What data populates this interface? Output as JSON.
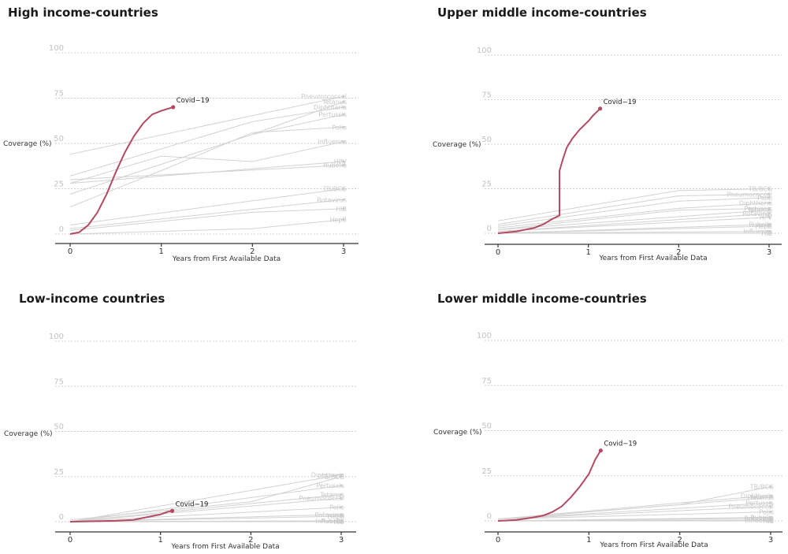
{
  "chart_data": [
    {
      "type": "line",
      "title": "High income-countries",
      "xlabel": "Years from First Available Data",
      "ylabel": "Coverage (%)",
      "xlim": [
        -0.15,
        3.15
      ],
      "ylim": [
        -5,
        102
      ],
      "x_ticks": [
        0,
        1,
        2,
        3
      ],
      "y_ticks": [
        0,
        25,
        50,
        75,
        100
      ],
      "series": [
        {
          "name": "Covid−19",
          "highlight": true,
          "x": [
            0,
            0.1,
            0.2,
            0.3,
            0.4,
            0.5,
            0.6,
            0.7,
            0.8,
            0.9,
            1.0,
            1.13
          ],
          "y": [
            0,
            1,
            5,
            12,
            22,
            34,
            45,
            54,
            61,
            66,
            68,
            70
          ]
        },
        {
          "name": "Pneumococcal",
          "x": [
            0,
            3
          ],
          "y": [
            44,
            76
          ]
        },
        {
          "name": "Diphtheria",
          "x": [
            0,
            2,
            3
          ],
          "y": [
            32,
            62,
            70
          ]
        },
        {
          "name": "Tetanus",
          "x": [
            2,
            3
          ],
          "y": [
            55,
            73
          ]
        },
        {
          "name": "Pertussis",
          "x": [
            0,
            2,
            3
          ],
          "y": [
            22,
            55,
            66
          ]
        },
        {
          "name": "Polio",
          "x": [
            0,
            1,
            2,
            3
          ],
          "y": [
            15,
            35,
            56,
            59
          ]
        },
        {
          "name": "Influenza",
          "x": [
            0,
            1,
            2,
            3
          ],
          "y": [
            28,
            43,
            40,
            51
          ]
        },
        {
          "name": "HPV",
          "x": [
            0,
            3
          ],
          "y": [
            28,
            40
          ]
        },
        {
          "name": "Rubella",
          "x": [
            0,
            3
          ],
          "y": [
            30,
            38
          ]
        },
        {
          "name": "TB/BCG",
          "x": [
            0,
            3
          ],
          "y": [
            5,
            25
          ]
        },
        {
          "name": "Rotavirus",
          "x": [
            0,
            3
          ],
          "y": [
            3,
            19
          ]
        },
        {
          "name": "HiB",
          "x": [
            0,
            2,
            3
          ],
          "y": [
            2,
            12,
            14
          ]
        },
        {
          "name": "HepB",
          "x": [
            0,
            2,
            3
          ],
          "y": [
            0,
            3,
            8
          ]
        }
      ]
    },
    {
      "type": "line",
      "title": "Upper middle income-countries",
      "xlabel": "Years from First Available Data",
      "ylabel": "Coverage (%)",
      "xlim": [
        -0.15,
        3.15
      ],
      "ylim": [
        -5,
        102
      ],
      "x_ticks": [
        0,
        1,
        2,
        3
      ],
      "y_ticks": [
        0,
        25,
        50,
        75,
        100
      ],
      "series": [
        {
          "name": "Covid−19",
          "highlight": true,
          "x": [
            0,
            0.2,
            0.4,
            0.5,
            0.6,
            0.68,
            0.68,
            0.72,
            0.76,
            0.82,
            0.9,
            1.0,
            1.05,
            1.13
          ],
          "y": [
            0,
            1,
            3,
            5,
            8,
            10,
            35,
            42,
            48,
            53,
            58,
            63,
            66,
            70
          ]
        },
        {
          "name": "TB/BCG",
          "x": [
            0,
            2,
            3
          ],
          "y": [
            7,
            24,
            25
          ]
        },
        {
          "name": "Pneumococcal",
          "x": [
            0,
            2,
            3
          ],
          "y": [
            5,
            21,
            22
          ]
        },
        {
          "name": "Polio",
          "x": [
            0,
            2,
            3
          ],
          "y": [
            4,
            18,
            20
          ]
        },
        {
          "name": "Diphtheria",
          "x": [
            0,
            2,
            3
          ],
          "y": [
            3,
            14,
            17
          ]
        },
        {
          "name": "Pertussis",
          "x": [
            0,
            2,
            3
          ],
          "y": [
            2,
            13,
            14
          ]
        },
        {
          "name": "Tetanus",
          "x": [
            0,
            3
          ],
          "y": [
            2,
            13
          ]
        },
        {
          "name": "Rotavirus",
          "x": [
            0,
            3
          ],
          "y": [
            1,
            11
          ]
        },
        {
          "name": "HPV",
          "x": [
            0,
            3
          ],
          "y": [
            1,
            9
          ]
        },
        {
          "name": "Rubella",
          "x": [
            0,
            3
          ],
          "y": [
            0,
            5
          ]
        },
        {
          "name": "HepB",
          "x": [
            0,
            3
          ],
          "y": [
            0,
            4
          ]
        },
        {
          "name": "Influenza",
          "x": [
            0,
            3
          ],
          "y": [
            0,
            1
          ]
        },
        {
          "name": "HiB",
          "x": [
            0,
            3
          ],
          "y": [
            0,
            0
          ]
        }
      ]
    },
    {
      "type": "line",
      "title": "Low-income countries",
      "xlabel": "Years from First Available Data",
      "ylabel": "Coverage (%)",
      "xlim": [
        -0.15,
        3.15
      ],
      "ylim": [
        -5,
        102
      ],
      "x_ticks": [
        0,
        1,
        2,
        3
      ],
      "y_ticks": [
        0,
        25,
        50,
        75,
        100
      ],
      "series": [
        {
          "name": "Covid−19",
          "highlight": true,
          "x": [
            0,
            0.5,
            0.7,
            0.8,
            0.9,
            1.0,
            1.08,
            1.13
          ],
          "y": [
            0,
            0.5,
            1,
            2,
            3,
            4,
            5.5,
            6
          ]
        },
        {
          "name": "TB/BCG",
          "x": [
            0,
            2,
            3
          ],
          "y": [
            1,
            11,
            25
          ]
        },
        {
          "name": "Diphtheria",
          "x": [
            0,
            3
          ],
          "y": [
            0,
            26
          ]
        },
        {
          "name": "Pertussis",
          "x": [
            0,
            3
          ],
          "y": [
            0,
            20
          ]
        },
        {
          "name": "Tetanus",
          "x": [
            0,
            3
          ],
          "y": [
            0,
            15
          ]
        },
        {
          "name": "Pneumococcal",
          "x": [
            0,
            3
          ],
          "y": [
            0,
            13
          ]
        },
        {
          "name": "Polio",
          "x": [
            0,
            3
          ],
          "y": [
            0,
            8
          ]
        },
        {
          "name": "Rotavirus",
          "x": [
            0,
            3
          ],
          "y": [
            0,
            4
          ]
        },
        {
          "name": "HepB",
          "x": [
            0,
            3
          ],
          "y": [
            0,
            3
          ]
        },
        {
          "name": "Influenza",
          "x": [
            0,
            3
          ],
          "y": [
            0,
            0.5
          ]
        },
        {
          "name": "Rubella",
          "x": [
            0,
            3
          ],
          "y": [
            0,
            0.5
          ]
        },
        {
          "name": "HiB",
          "x": [
            0,
            3
          ],
          "y": [
            0,
            0
          ]
        }
      ]
    },
    {
      "type": "line",
      "title": "Lower middle income-countries",
      "xlabel": "Years from First Available Data",
      "ylabel": "Coverage (%)",
      "xlim": [
        -0.15,
        3.15
      ],
      "ylim": [
        -5,
        102
      ],
      "x_ticks": [
        0,
        1,
        2,
        3
      ],
      "y_ticks": [
        0,
        25,
        50,
        75,
        100
      ],
      "series": [
        {
          "name": "Covid−19",
          "highlight": true,
          "x": [
            0,
            0.2,
            0.4,
            0.5,
            0.6,
            0.7,
            0.8,
            0.9,
            1.0,
            1.07,
            1.13
          ],
          "y": [
            0,
            0.5,
            2,
            3,
            5,
            8,
            13,
            19,
            26,
            34,
            39
          ]
        },
        {
          "name": "TB/BCG",
          "x": [
            0,
            2,
            3
          ],
          "y": [
            1,
            9,
            19
          ]
        },
        {
          "name": "Diphtheria",
          "x": [
            0,
            2,
            3
          ],
          "y": [
            1,
            10,
            14
          ]
        },
        {
          "name": "Tetanus",
          "x": [
            0,
            3
          ],
          "y": [
            1,
            13
          ]
        },
        {
          "name": "Pertussis",
          "x": [
            0,
            3
          ],
          "y": [
            1,
            10
          ]
        },
        {
          "name": "Pneumococcal",
          "x": [
            0,
            3
          ],
          "y": [
            1,
            8
          ]
        },
        {
          "name": "Polio",
          "x": [
            0,
            3
          ],
          "y": [
            1,
            5
          ]
        },
        {
          "name": "Rubella",
          "x": [
            0,
            3
          ],
          "y": [
            0,
            2
          ]
        },
        {
          "name": "Rotavirus",
          "x": [
            0,
            3
          ],
          "y": [
            0,
            1.5
          ]
        },
        {
          "name": "Influenza",
          "x": [
            0,
            3
          ],
          "y": [
            0,
            0.5
          ]
        },
        {
          "name": "HiB",
          "x": [
            0,
            3
          ],
          "y": [
            0,
            0
          ]
        }
      ]
    }
  ]
}
